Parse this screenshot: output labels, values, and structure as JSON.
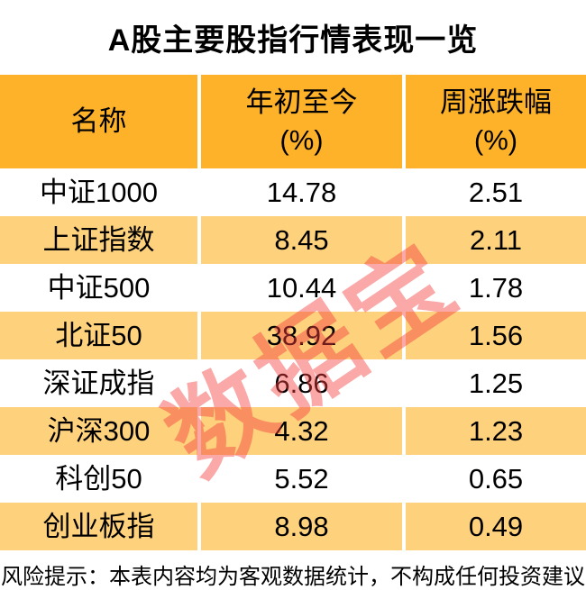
{
  "title": "A股主要股指行情表现一览",
  "watermark": {
    "text": "数据宝"
  },
  "header": {
    "name": "名称",
    "ytd_line1": "年初至今",
    "ytd_line2": "(%)",
    "week_line1": "周涨跌幅",
    "week_line2": "(%)"
  },
  "chart_data": {
    "type": "table",
    "title": "A股主要股指行情表现一览",
    "columns": [
      "名称",
      "年初至今 (%)",
      "周涨跌幅 (%)"
    ],
    "rows": [
      [
        "中证1000",
        "14.78",
        "2.51"
      ],
      [
        "上证指数",
        "8.45",
        "2.11"
      ],
      [
        "中证500",
        "10.44",
        "1.78"
      ],
      [
        "北证50",
        "38.92",
        "1.56"
      ],
      [
        "深证成指",
        "6.86",
        "1.25"
      ],
      [
        "沪深300",
        "4.32",
        "1.23"
      ],
      [
        "科创50",
        "5.52",
        "0.65"
      ],
      [
        "创业板指",
        "8.98",
        "0.49"
      ]
    ]
  },
  "footer": {
    "text": "风险提示：本表内容均为客观数据统计，不构成任何投资建议。"
  },
  "colors": {
    "header_bg": "#FDB22A",
    "row_alt_bg": "#FED17C",
    "watermark": "rgba(243, 62, 62, 0.45)"
  }
}
